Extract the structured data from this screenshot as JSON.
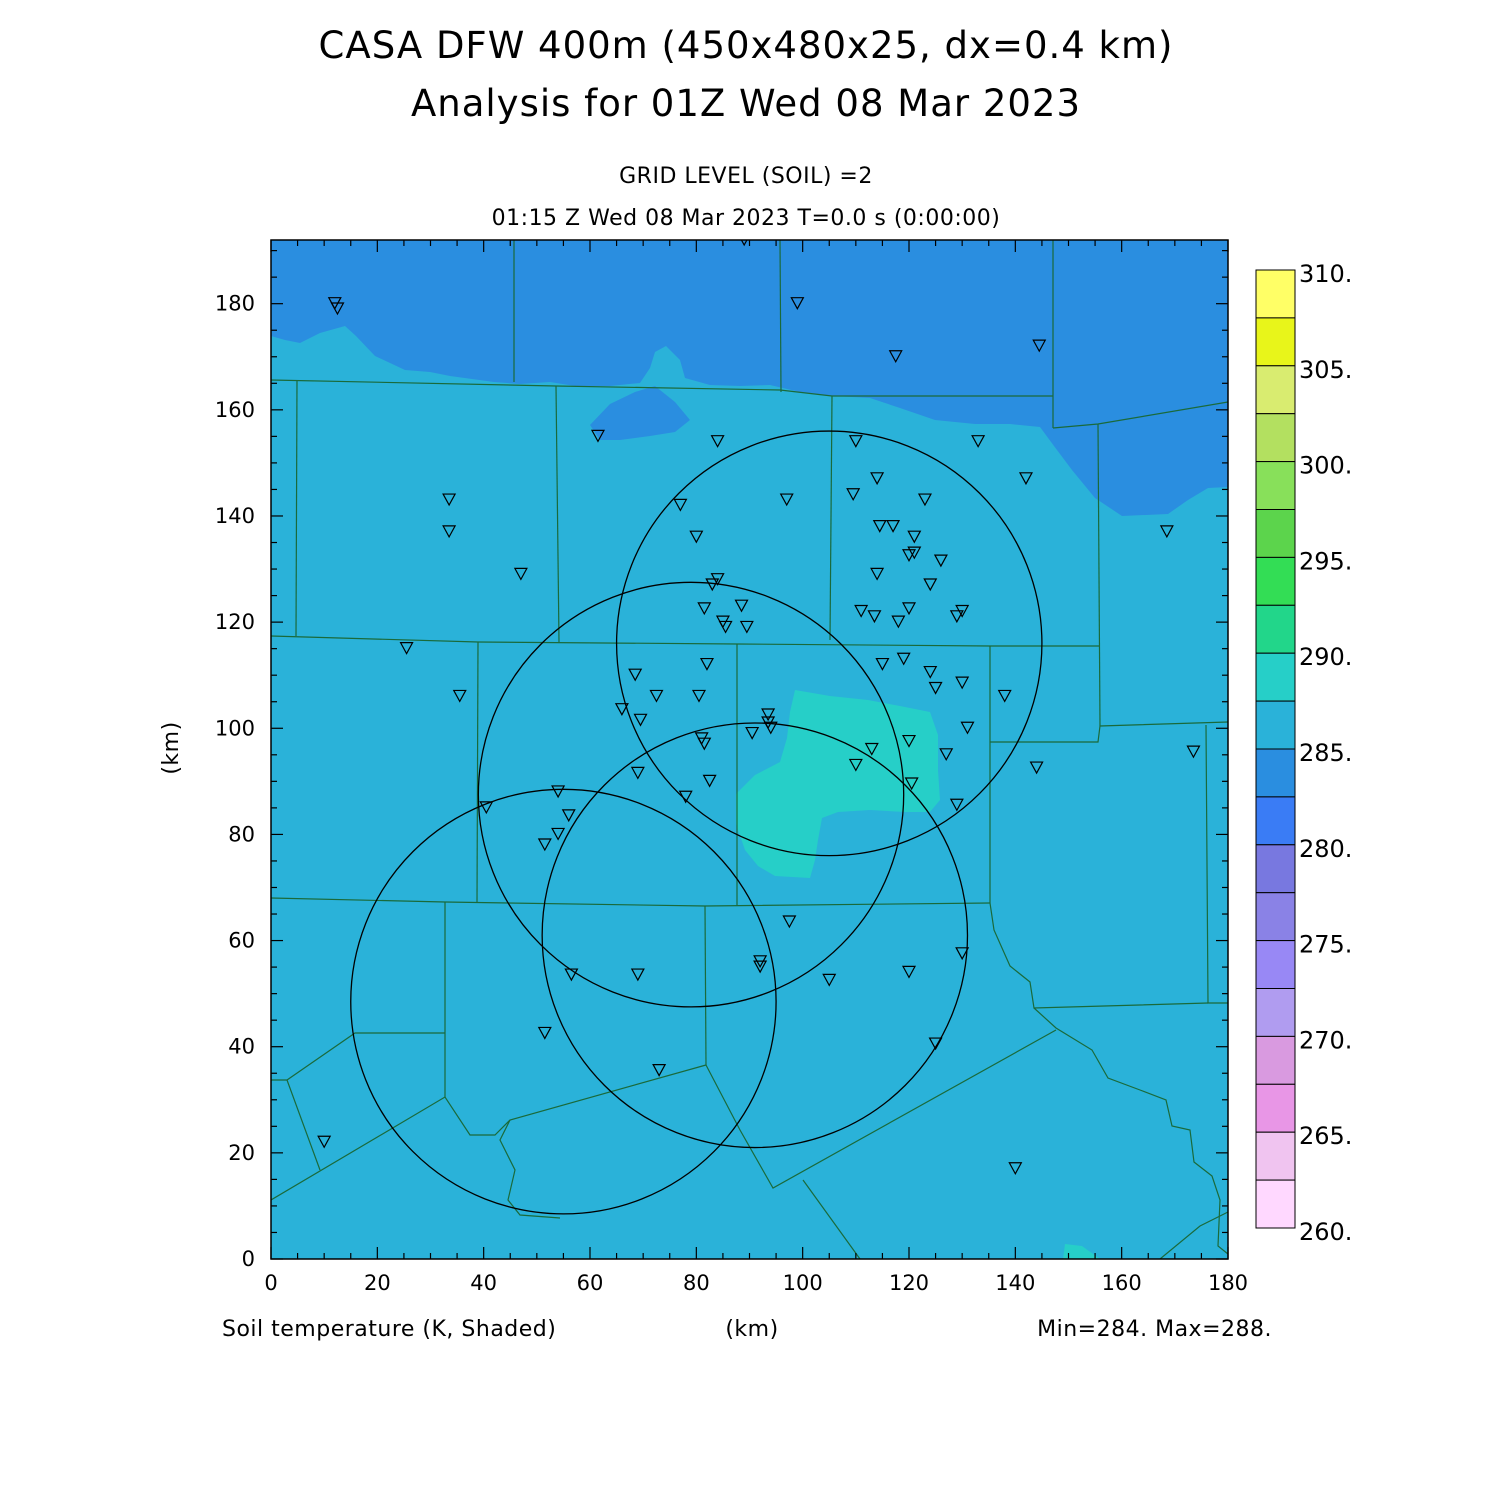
{
  "title": {
    "line1": "CASA DFW 400m (450x480x25, dx=0.4 km)",
    "line2": "Analysis for 01Z Wed 08 Mar 2023"
  },
  "subtitle": {
    "line1": "GRID LEVEL (SOIL) =2",
    "line2": "01:15 Z Wed 08 Mar 2023   T=0.0 s (0:00:00)"
  },
  "footer": {
    "field_label": "Soil temperature (K, Shaded)",
    "x_unit": "(km)",
    "minmax": "Min=284. Max=288."
  },
  "axes": {
    "y_label": "(km)",
    "x_range": [
      0,
      180
    ],
    "y_range": [
      0,
      192
    ],
    "x_ticks": [
      "0",
      "20",
      "40",
      "60",
      "80",
      "100",
      "120",
      "140",
      "160",
      "180"
    ],
    "y_ticks": [
      "0",
      "20",
      "40",
      "60",
      "80",
      "100",
      "120",
      "140",
      "160",
      "180"
    ]
  },
  "colorbar": {
    "labels": [
      "310.",
      "305.",
      "300.",
      "295.",
      "290.",
      "285.",
      "280.",
      "275.",
      "270.",
      "265.",
      "260."
    ],
    "colors": [
      "#ffff66",
      "#e8f51a",
      "#d9ec70",
      "#b3e060",
      "#88e05a",
      "#5cd44c",
      "#33dd55",
      "#22d68a",
      "#26cfc8",
      "#2ab2d9",
      "#2a8ee0",
      "#3a7cf5",
      "#7878e0",
      "#8a82e6",
      "#9888f5",
      "#b09cf0",
      "#d99ae0",
      "#e896e6",
      "#f0c4f0",
      "#ffd8ff"
    ],
    "color_count_note": ""
  },
  "map_colors": {
    "background": "#2ab2d9",
    "cold": "#2a8ee0",
    "warm": "#26cfc8",
    "county_lines": "#1a6a3a",
    "radar_rings": "#000000"
  },
  "radar_rings_km": [
    {
      "x": 105,
      "y": 116,
      "r": 40
    },
    {
      "x": 79,
      "y": 87.5,
      "r": 40
    },
    {
      "x": 91,
      "y": 61,
      "r": 40
    },
    {
      "x": 55,
      "y": 48.5,
      "r": 40
    }
  ],
  "stations_km": [
    [
      12,
      180
    ],
    [
      12.5,
      179
    ],
    [
      99,
      180
    ],
    [
      117.5,
      170
    ],
    [
      144.5,
      172
    ],
    [
      61.5,
      155
    ],
    [
      84,
      154
    ],
    [
      110,
      154
    ],
    [
      133,
      154
    ],
    [
      33.5,
      143
    ],
    [
      33.5,
      137
    ],
    [
      47,
      129
    ],
    [
      77,
      142
    ],
    [
      97,
      143
    ],
    [
      109.5,
      144
    ],
    [
      114,
      147
    ],
    [
      123,
      143
    ],
    [
      142,
      147
    ],
    [
      114.5,
      138
    ],
    [
      117,
      138
    ],
    [
      121,
      136
    ],
    [
      120,
      132.5
    ],
    [
      121,
      133
    ],
    [
      126,
      131.5
    ],
    [
      80,
      136
    ],
    [
      83,
      127
    ],
    [
      84,
      128
    ],
    [
      114,
      129
    ],
    [
      124,
      127
    ],
    [
      168.5,
      137
    ],
    [
      81.5,
      122.5
    ],
    [
      85,
      120
    ],
    [
      85.5,
      119
    ],
    [
      88.5,
      123
    ],
    [
      89.5,
      119
    ],
    [
      111,
      122
    ],
    [
      113.5,
      121
    ],
    [
      118,
      120
    ],
    [
      120,
      122.5
    ],
    [
      129,
      121
    ],
    [
      130,
      122
    ],
    [
      25.5,
      115
    ],
    [
      82,
      112
    ],
    [
      115,
      112
    ],
    [
      119,
      113
    ],
    [
      124,
      110.5
    ],
    [
      125,
      107.5
    ],
    [
      130,
      108.5
    ],
    [
      68.5,
      110
    ],
    [
      72.5,
      106
    ],
    [
      80.5,
      106
    ],
    [
      66,
      103.5
    ],
    [
      69.5,
      101.5
    ],
    [
      35.5,
      106
    ],
    [
      138,
      106
    ],
    [
      93.5,
      102.5
    ],
    [
      93.5,
      101
    ],
    [
      94,
      100
    ],
    [
      131,
      100
    ],
    [
      81,
      98
    ],
    [
      81.5,
      97
    ],
    [
      90.5,
      99
    ],
    [
      113,
      96
    ],
    [
      120,
      97.5
    ],
    [
      127,
      95
    ],
    [
      173.5,
      95.5
    ],
    [
      110,
      93
    ],
    [
      144,
      92.5
    ],
    [
      69,
      91.5
    ],
    [
      82.5,
      90
    ],
    [
      120.5,
      89.5
    ],
    [
      78,
      87
    ],
    [
      54,
      88
    ],
    [
      40.5,
      85
    ],
    [
      129,
      85.5
    ],
    [
      56,
      83.5
    ],
    [
      54,
      80
    ],
    [
      51.5,
      78
    ],
    [
      97.5,
      63.5
    ],
    [
      130,
      57.5
    ],
    [
      92,
      56
    ],
    [
      92,
      55
    ],
    [
      56.5,
      53.5
    ],
    [
      69,
      53.5
    ],
    [
      120,
      54
    ],
    [
      105,
      52.5
    ],
    [
      51.5,
      42.5
    ],
    [
      125,
      40.5
    ],
    [
      73,
      35.5
    ],
    [
      10,
      22
    ],
    [
      140,
      17
    ],
    [
      89,
      192
    ]
  ]
}
